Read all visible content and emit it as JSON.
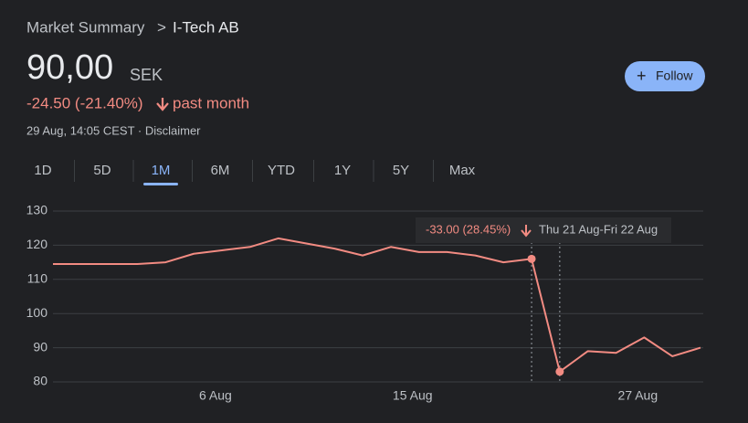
{
  "breadcrumb": {
    "parent": "Market Summary",
    "separator": ">",
    "current": "I-Tech AB"
  },
  "price": {
    "value": "90,00",
    "currency": "SEK",
    "change": "-24.50 (-21.40%)",
    "period": "past month",
    "timestamp": "29 Aug, 14:05 CEST · Disclaimer"
  },
  "follow_button": {
    "icon": "+",
    "label": "Follow"
  },
  "tabs": [
    "1D",
    "5D",
    "1M",
    "6M",
    "YTD",
    "1Y",
    "5Y",
    "Max"
  ],
  "selected_tab": "1M",
  "chart_data": {
    "type": "line",
    "categories": [
      null,
      null,
      null,
      null,
      null,
      null,
      "6 Aug",
      null,
      null,
      null,
      null,
      null,
      null,
      "15 Aug",
      null,
      null,
      null,
      null,
      null,
      null,
      null,
      "27 Aug",
      null,
      null
    ],
    "values": [
      114.5,
      114.5,
      114.5,
      114.5,
      115,
      117.5,
      118.5,
      119.5,
      122,
      120.5,
      119,
      117,
      119.5,
      118,
      118,
      117,
      115,
      116,
      83,
      89,
      88.5,
      93,
      87.5,
      90
    ],
    "color": "#f28b82",
    "ylim": [
      80,
      130
    ],
    "yticks": [
      80,
      90,
      100,
      110,
      120,
      130
    ],
    "grid": true,
    "annotation": {
      "change": "-33.00 (28.45%)",
      "period": "Thu 21 Aug-Fri 22 Aug"
    }
  }
}
